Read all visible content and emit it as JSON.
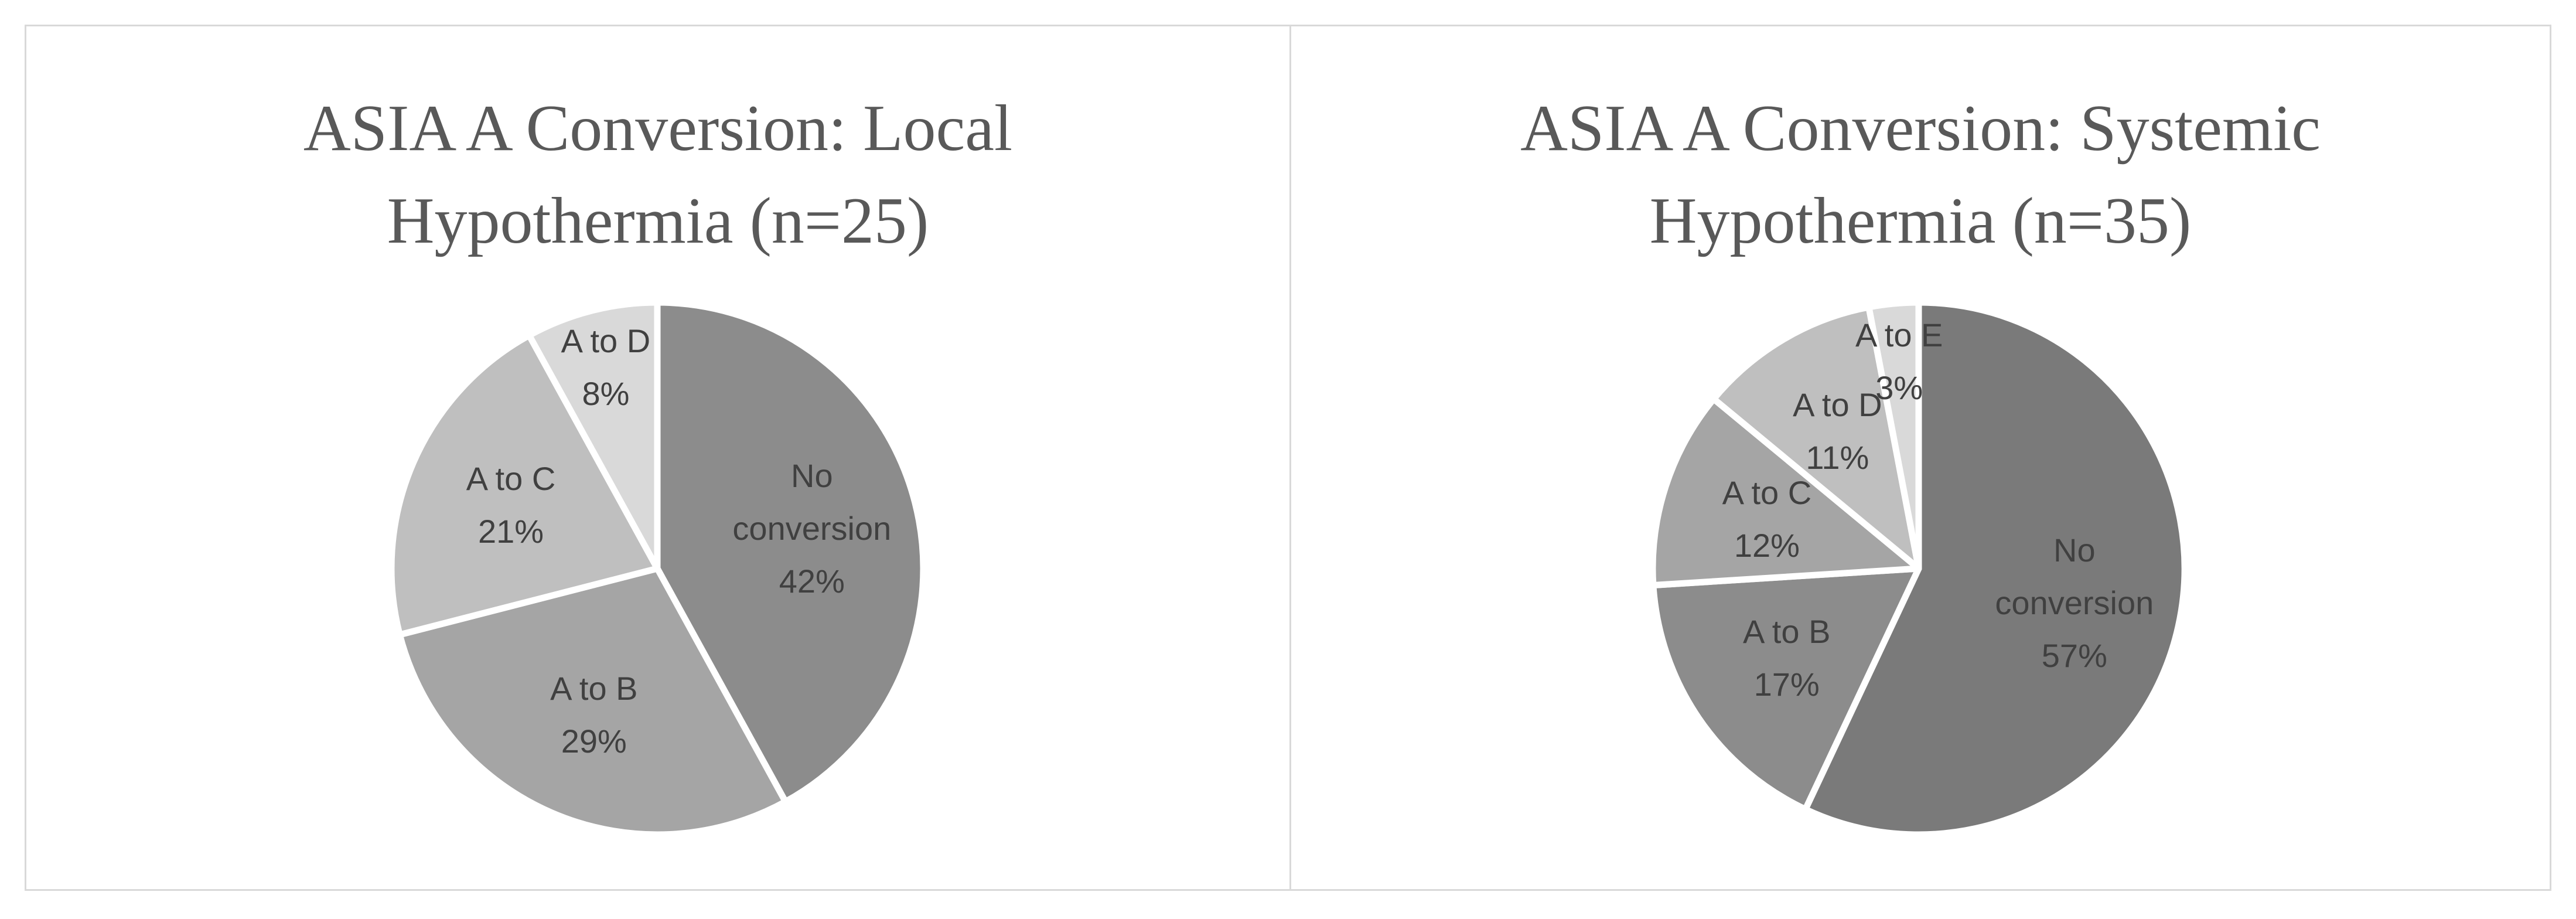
{
  "chart_data": [
    {
      "type": "pie",
      "title": "ASIA A Conversion: Local Hypothermia (n=25)",
      "categories": [
        "No conversion",
        "A to B",
        "A to C",
        "A to D"
      ],
      "values": [
        42,
        29,
        21,
        8
      ],
      "value_labels": [
        "42%",
        "29%",
        "21%",
        "8%"
      ],
      "colors": [
        "#8c8c8c",
        "#a5a5a5",
        "#bfbfbf",
        "#d9d9d9"
      ]
    },
    {
      "type": "pie",
      "title": "ASIA A Conversion: Systemic Hypothermia (n=35)",
      "categories": [
        "No conversion",
        "A to B",
        "A to C",
        "A to D",
        "A to E"
      ],
      "values": [
        57,
        17,
        12,
        11,
        3
      ],
      "value_labels": [
        "57%",
        "17%",
        "12%",
        "11%",
        "3%"
      ],
      "colors": [
        "#7a7a7a",
        "#8c8c8c",
        "#a5a5a5",
        "#bfbfbf",
        "#d9d9d9"
      ]
    }
  ]
}
